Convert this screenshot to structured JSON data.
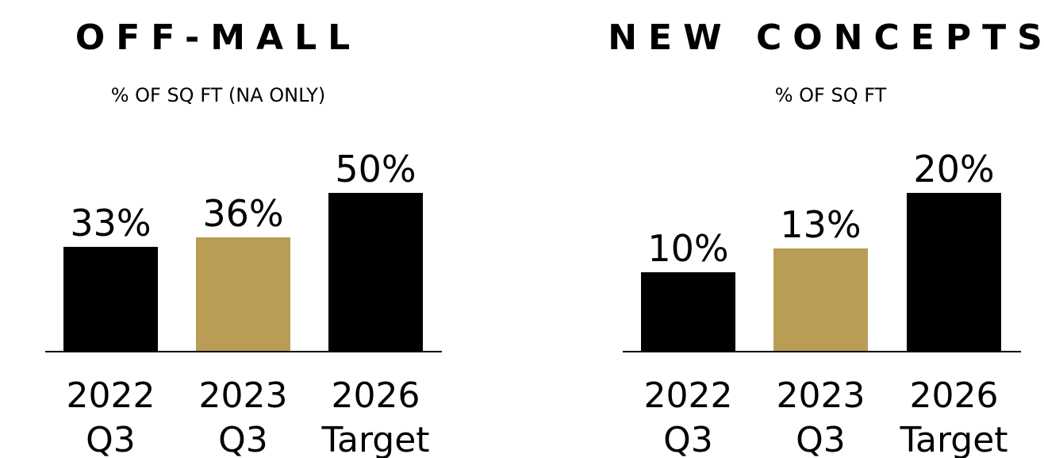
{
  "chart_data": [
    {
      "type": "bar",
      "title": "OFF-MALL",
      "subtitle": "% OF SQ FT (NA ONLY)",
      "categories": [
        [
          "2022",
          "Q3"
        ],
        [
          "2023",
          "Q3"
        ],
        [
          "2026",
          "Target"
        ]
      ],
      "values": [
        33,
        36,
        50
      ],
      "value_labels": [
        "33%",
        "36%",
        "50%"
      ],
      "colors": [
        "#000000",
        "#b99d55",
        "#000000"
      ],
      "ylim": [
        0,
        50
      ]
    },
    {
      "type": "bar",
      "title": "NEW CONCEPTS",
      "subtitle": "% OF SQ FT",
      "categories": [
        [
          "2022",
          "Q3"
        ],
        [
          "2023",
          "Q3"
        ],
        [
          "2026",
          "Target"
        ]
      ],
      "values": [
        10,
        13,
        20
      ],
      "value_labels": [
        "10%",
        "13%",
        "20%"
      ],
      "colors": [
        "#000000",
        "#b99d55",
        "#000000"
      ],
      "ylim": [
        0,
        20
      ]
    }
  ]
}
